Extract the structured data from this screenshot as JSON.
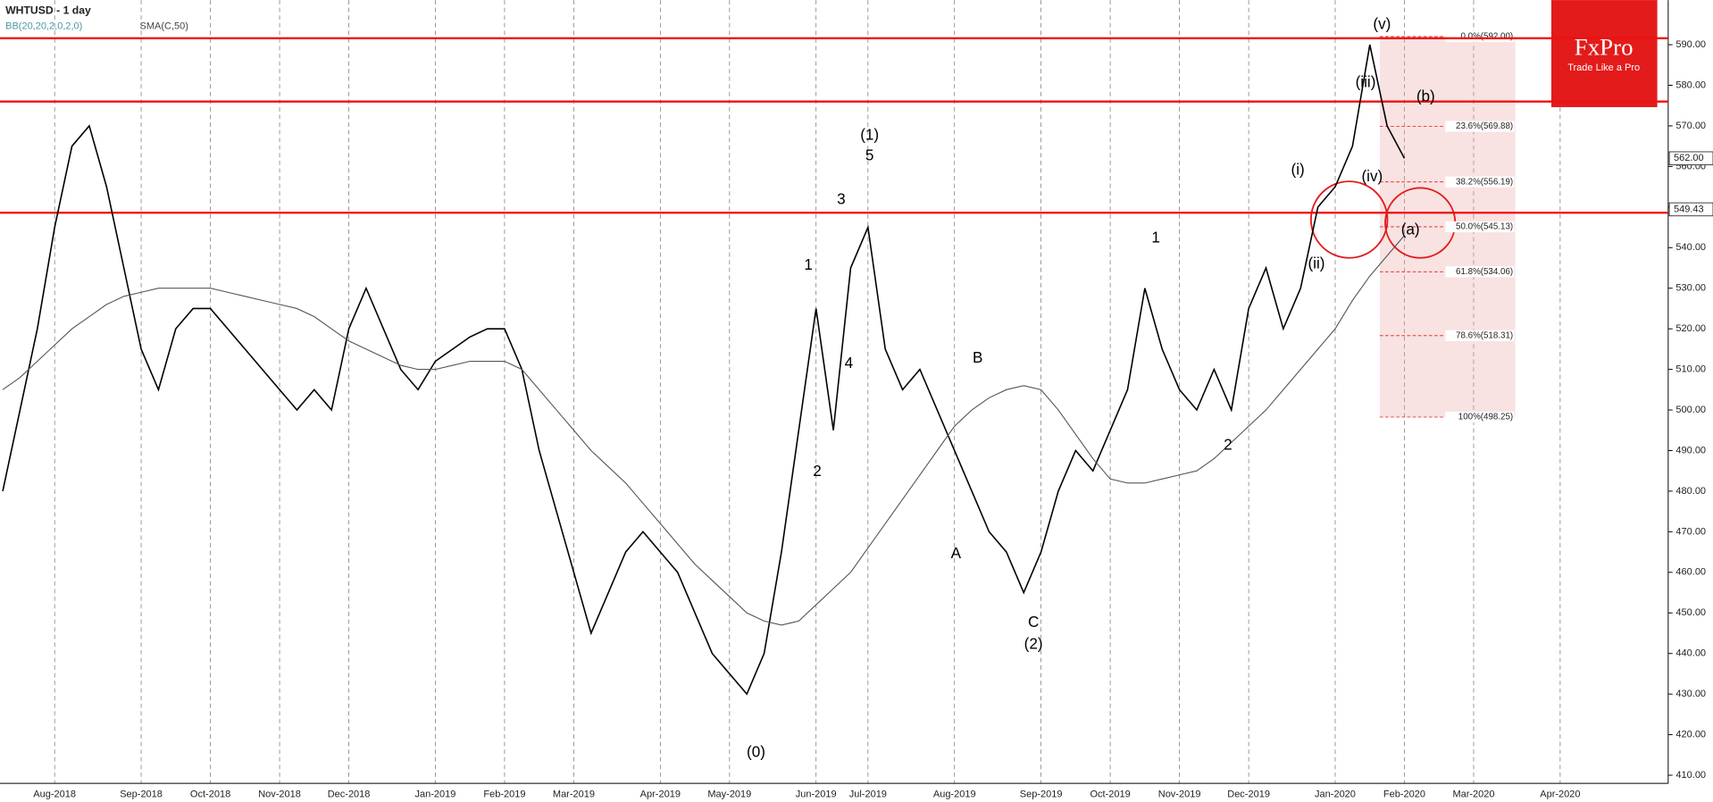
{
  "chart_data": {
    "type": "line",
    "title": "WHTUSD - 1 day",
    "bb_label": "BB(20,20,2,0,2,0)",
    "categories": [
      null,
      null,
      null,
      "Aug-2018",
      null,
      null,
      null,
      null,
      "Sep-2018",
      null,
      null,
      null,
      "Oct-2018",
      null,
      null,
      null,
      "Nov-2018",
      null,
      null,
      null,
      "Dec-2018",
      null,
      null,
      null,
      null,
      "Jan-2019",
      null,
      null,
      null,
      "Feb-2019",
      null,
      null,
      null,
      "Mar-2019",
      null,
      null,
      null,
      null,
      "Apr-2019",
      null,
      null,
      null,
      "May-2019",
      null,
      null,
      null,
      null,
      "Jun-2019",
      null,
      null,
      "Jul-2019",
      null,
      null,
      null,
      null,
      "Aug-2019",
      null,
      null,
      null,
      null,
      "Sep-2019",
      null,
      null,
      null,
      "Oct-2019",
      null,
      null,
      null,
      "Nov-2019",
      null,
      null,
      null,
      "Dec-2019",
      null,
      null,
      null,
      null,
      "Jan-2020",
      null,
      null,
      null,
      "Feb-2020",
      null,
      null,
      null,
      "Mar-2020",
      null,
      null,
      null,
      null,
      "Apr-2020",
      null,
      null,
      null,
      null,
      null,
      null,
      null
    ],
    "series": [
      {
        "color": "#000000",
        "values": [
          480,
          500,
          520,
          545,
          565,
          570,
          555,
          535,
          515,
          505,
          520,
          525,
          525,
          520,
          515,
          510,
          505,
          500,
          505,
          500,
          520,
          530,
          520,
          510,
          505,
          512,
          515,
          518,
          520,
          520,
          510,
          490,
          475,
          460,
          445,
          455,
          465,
          470,
          465,
          460,
          450,
          440,
          435,
          430,
          440,
          465,
          495,
          525,
          495,
          535,
          545,
          515,
          505,
          510,
          500,
          490,
          480,
          470,
          465,
          455,
          465,
          480,
          490,
          485,
          495,
          505,
          530,
          515,
          505,
          500,
          510,
          500,
          525,
          535,
          520,
          530,
          550,
          555,
          565,
          590,
          570,
          562,
          null,
          null,
          null,
          null,
          null,
          null,
          null,
          null,
          null,
          null,
          null,
          null,
          null,
          null,
          null,
          null
        ]
      },
      {
        "name": "SMA(C,50)",
        "color": "#555555",
        "values": [
          505,
          508,
          512,
          516,
          520,
          523,
          526,
          528,
          529,
          530,
          530,
          530,
          530,
          529,
          528,
          527,
          526,
          525,
          523,
          520,
          517,
          515,
          513,
          511,
          510,
          510,
          511,
          512,
          512,
          512,
          510,
          505,
          500,
          495,
          490,
          486,
          482,
          477,
          472,
          467,
          462,
          458,
          454,
          450,
          448,
          447,
          448,
          452,
          456,
          460,
          466,
          472,
          478,
          484,
          490,
          496,
          500,
          503,
          505,
          506,
          505,
          500,
          494,
          488,
          483,
          482,
          482,
          483,
          484,
          485,
          488,
          492,
          496,
          500,
          505,
          510,
          515,
          520,
          527,
          533,
          538,
          543,
          null,
          null,
          null,
          null,
          null,
          null,
          null,
          null,
          null,
          null,
          null,
          null,
          null,
          null,
          null,
          null
        ]
      }
    ],
    "ylim": [
      408,
      601
    ],
    "yticks": [
      {
        "value": 410,
        "label": "410.00"
      },
      {
        "value": 420,
        "label": "420.00"
      },
      {
        "value": 430,
        "label": "430.00"
      },
      {
        "value": 440,
        "label": "440.00"
      },
      {
        "value": 450,
        "label": "450.00"
      },
      {
        "value": 460,
        "label": "460.00"
      },
      {
        "value": 470,
        "label": "470.00"
      },
      {
        "value": 480,
        "label": "480.00"
      },
      {
        "value": 490,
        "label": "490.00"
      },
      {
        "value": 500,
        "label": "500.00"
      },
      {
        "value": 510,
        "label": "510.00"
      },
      {
        "value": 520,
        "label": "520.00"
      },
      {
        "value": 530,
        "label": "530.00"
      },
      {
        "value": 540,
        "label": "540.00"
      },
      {
        "value": 550,
        "label": "550.00"
      },
      {
        "value": 560,
        "label": "560.00"
      },
      {
        "value": 570,
        "label": "570.00"
      },
      {
        "value": 580,
        "label": "580.00"
      },
      {
        "value": 590,
        "label": "590.00"
      }
    ],
    "levels": [
      591.6,
      576,
      548.6
    ],
    "level_color": "#ee1111",
    "fibonacci": [
      {
        "value": 592,
        "label": "0.0%(592.00)"
      },
      {
        "value": 569.88,
        "label": "23.6%(569.88)"
      },
      {
        "value": 556.19,
        "label": "38.2%(556.19)"
      },
      {
        "value": 545.13,
        "label": "50.0%(545.13)"
      },
      {
        "value": 534.06,
        "label": "61.8%(534.06)"
      },
      {
        "value": 518.31,
        "label": "78.6%(518.31)"
      },
      {
        "value": 498.25,
        "label": "100%(498.25)"
      }
    ],
    "price_labels": [
      {
        "value": 562,
        "label": "562.00"
      },
      {
        "value": 549.43,
        "label": "549.43"
      }
    ],
    "annotations": [
      "(1)",
      "5",
      "3",
      "4",
      "1",
      "2",
      "(0)",
      "A",
      "B",
      "C",
      "(2)",
      "1",
      "2",
      "(v)",
      "(iii)",
      "(iv)",
      "(b)",
      "(a)",
      "(i)",
      "(ii)"
    ],
    "logo": {
      "name": "FxPro",
      "tagline": "Trade Like a Pro"
    }
  }
}
